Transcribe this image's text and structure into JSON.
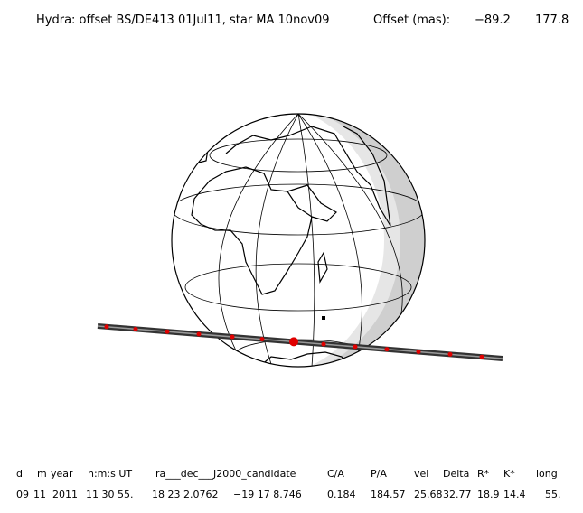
{
  "title": {
    "text": "Hydra: offset BS/DE413 01Jul11, star MA 10nov09",
    "offset_label": "Offset (mas):",
    "offset_x": "−89.2",
    "offset_y": "177.8"
  },
  "table": {
    "header": [
      "d",
      "m",
      "year",
      "h:m:s UT",
      "ra___dec___J2000_candidate",
      "C/A",
      "P/A",
      "vel",
      "Delta",
      "R*",
      "K*",
      "long"
    ],
    "rows": [
      [
        "09",
        "11",
        "2011",
        "11 30 55.",
        "18 23 2.0762",
        "−19 17 8.746",
        "0.184",
        "184.57",
        "25.68",
        "32.77",
        "18.9",
        "14.4",
        "55."
      ]
    ]
  }
}
